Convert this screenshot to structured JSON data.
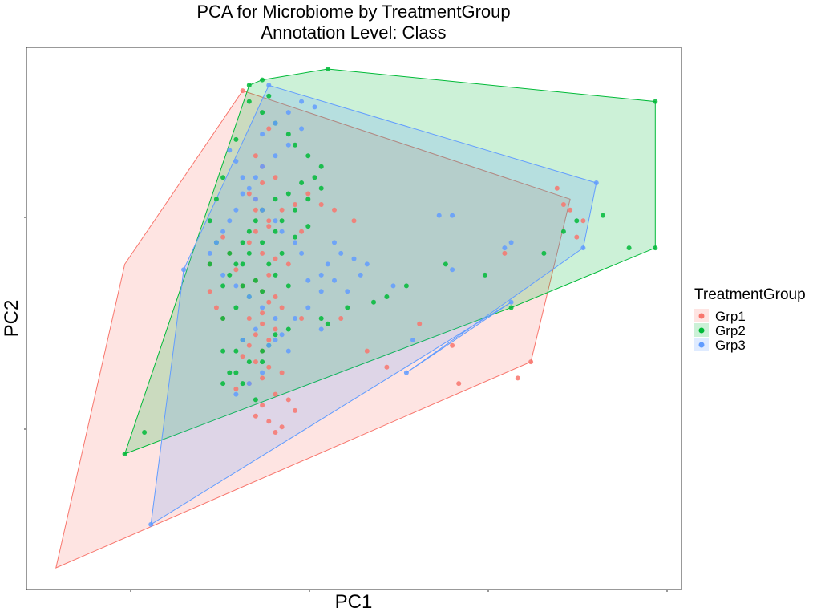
{
  "chart_data": {
    "type": "scatter",
    "title": "PCA for Microbiome by TreatmentGroup",
    "subtitle": "Annotation Level: Class",
    "xlabel": "PC1",
    "ylabel": "PC2",
    "xlim": [
      0,
      100
    ],
    "ylim": [
      0,
      100
    ],
    "grid": false,
    "legend": {
      "title": "TreatmentGroup",
      "position": "right"
    },
    "groups": [
      {
        "name": "Grp1",
        "color": "#F8766D",
        "hull": [
          [
            4.5,
            4
          ],
          [
            15,
            60
          ],
          [
            33,
            92
          ],
          [
            83,
            72
          ],
          [
            77,
            42
          ]
        ],
        "points": [
          [
            33,
            92
          ],
          [
            37,
            85
          ],
          [
            35,
            80
          ],
          [
            36,
            78
          ],
          [
            38,
            76
          ],
          [
            36,
            75
          ],
          [
            34,
            73
          ],
          [
            35,
            72
          ],
          [
            36,
            70
          ],
          [
            37,
            68
          ],
          [
            35,
            66
          ],
          [
            34,
            64
          ],
          [
            36,
            62
          ],
          [
            38,
            61
          ],
          [
            40,
            60
          ],
          [
            37,
            58
          ],
          [
            35,
            57
          ],
          [
            33,
            56
          ],
          [
            36,
            55
          ],
          [
            38,
            54
          ],
          [
            37,
            53
          ],
          [
            39,
            52
          ],
          [
            36,
            51
          ],
          [
            34,
            50
          ],
          [
            36,
            49
          ],
          [
            38,
            48
          ],
          [
            35,
            47
          ],
          [
            37,
            46
          ],
          [
            34,
            45
          ],
          [
            36,
            44
          ],
          [
            33,
            43
          ],
          [
            35,
            42
          ],
          [
            37,
            41
          ],
          [
            39,
            40
          ],
          [
            36,
            39
          ],
          [
            34,
            38
          ],
          [
            32,
            37
          ],
          [
            38,
            36
          ],
          [
            40,
            35
          ],
          [
            36,
            34
          ],
          [
            41,
            33
          ],
          [
            35,
            32
          ],
          [
            37,
            31
          ],
          [
            39,
            30
          ],
          [
            38,
            29
          ],
          [
            30,
            65
          ],
          [
            31,
            62
          ],
          [
            32,
            59
          ],
          [
            28,
            60
          ],
          [
            28,
            55
          ],
          [
            29,
            52
          ],
          [
            30,
            50
          ],
          [
            35,
            70
          ],
          [
            37,
            67
          ],
          [
            42,
            66
          ],
          [
            39,
            70
          ],
          [
            41,
            71
          ],
          [
            43,
            73
          ],
          [
            45,
            71
          ],
          [
            47,
            70
          ],
          [
            50,
            68
          ],
          [
            42,
            50
          ],
          [
            48,
            50
          ],
          [
            52,
            44
          ],
          [
            55,
            41
          ],
          [
            60,
            49
          ],
          [
            65,
            45
          ],
          [
            66,
            38
          ],
          [
            81,
            74
          ],
          [
            82,
            71
          ],
          [
            83,
            70
          ],
          [
            85,
            68
          ],
          [
            84,
            65
          ],
          [
            73,
            62
          ],
          [
            75,
            39
          ],
          [
            77,
            42
          ]
        ]
      },
      {
        "name": "Grp2",
        "color": "#00BA38",
        "hull": [
          [
            15,
            25
          ],
          [
            34,
            93
          ],
          [
            36,
            94
          ],
          [
            46,
            96
          ],
          [
            96,
            90
          ],
          [
            96,
            63
          ],
          [
            74,
            52
          ]
        ],
        "points": [
          [
            15,
            25
          ],
          [
            18,
            29
          ],
          [
            34,
            93
          ],
          [
            36,
            94
          ],
          [
            46,
            96
          ],
          [
            96,
            90
          ],
          [
            96,
            63
          ],
          [
            74,
            52
          ],
          [
            92,
            63
          ],
          [
            88,
            69
          ],
          [
            84,
            68
          ],
          [
            82,
            66
          ],
          [
            79,
            62
          ],
          [
            70,
            58
          ],
          [
            64,
            60
          ],
          [
            58,
            56
          ],
          [
            55,
            54
          ],
          [
            53,
            53
          ],
          [
            49,
            52
          ],
          [
            46,
            49
          ],
          [
            45,
            50
          ],
          [
            40,
            48
          ],
          [
            38,
            47
          ],
          [
            37,
            45
          ],
          [
            36,
            44
          ],
          [
            36,
            55
          ],
          [
            35,
            57
          ],
          [
            33,
            56
          ],
          [
            32,
            60
          ],
          [
            31,
            62
          ],
          [
            33,
            64
          ],
          [
            34,
            66
          ],
          [
            35,
            68
          ],
          [
            36,
            70
          ],
          [
            38,
            72
          ],
          [
            40,
            73
          ],
          [
            42,
            75
          ],
          [
            44,
            76
          ],
          [
            45,
            78
          ],
          [
            43,
            80
          ],
          [
            41,
            82
          ],
          [
            40,
            84
          ],
          [
            38,
            86
          ],
          [
            36,
            88
          ],
          [
            34,
            90
          ],
          [
            37,
            91
          ],
          [
            32,
            83
          ],
          [
            30,
            76
          ],
          [
            29,
            72
          ],
          [
            28,
            68
          ],
          [
            29,
            64
          ],
          [
            28,
            60
          ],
          [
            30,
            56
          ],
          [
            31,
            58
          ],
          [
            33,
            60
          ],
          [
            34,
            62
          ],
          [
            36,
            64
          ],
          [
            38,
            66
          ],
          [
            39,
            68
          ],
          [
            41,
            70
          ],
          [
            43,
            72
          ],
          [
            45,
            74
          ],
          [
            30,
            50
          ],
          [
            32,
            52
          ],
          [
            34,
            54
          ],
          [
            33,
            46
          ],
          [
            32,
            44
          ],
          [
            30,
            44
          ],
          [
            31,
            40
          ],
          [
            33,
            38
          ],
          [
            35,
            35
          ],
          [
            36,
            42
          ],
          [
            37,
            60
          ],
          [
            39,
            62
          ],
          [
            41,
            65
          ],
          [
            43,
            67
          ],
          [
            40,
            56
          ],
          [
            38,
            58
          ],
          [
            34,
            42
          ],
          [
            32,
            40
          ],
          [
            30,
            38
          ]
        ]
      },
      {
        "name": "Grp3",
        "color": "#619CFF",
        "hull": [
          [
            19,
            12
          ],
          [
            24,
            59
          ],
          [
            37,
            93
          ],
          [
            87,
            75
          ],
          [
            85,
            63
          ],
          [
            58,
            40
          ],
          [
            74,
            53
          ]
        ],
        "points": [
          [
            19,
            12
          ],
          [
            24,
            59
          ],
          [
            37,
            93
          ],
          [
            87,
            75
          ],
          [
            85,
            63
          ],
          [
            58,
            40
          ],
          [
            74,
            53
          ],
          [
            59,
            46
          ],
          [
            63,
            69
          ],
          [
            65,
            69
          ],
          [
            73,
            63
          ],
          [
            74,
            64
          ],
          [
            65,
            59
          ],
          [
            56,
            56
          ],
          [
            52,
            60
          ],
          [
            51,
            58
          ],
          [
            50,
            61
          ],
          [
            48,
            62
          ],
          [
            47,
            64
          ],
          [
            45,
            58
          ],
          [
            43,
            57
          ],
          [
            42,
            62
          ],
          [
            41,
            64
          ],
          [
            39,
            66
          ],
          [
            38,
            68
          ],
          [
            36,
            70
          ],
          [
            35,
            72
          ],
          [
            34,
            74
          ],
          [
            33,
            76
          ],
          [
            32,
            79
          ],
          [
            31,
            81
          ],
          [
            36,
            84
          ],
          [
            38,
            86
          ],
          [
            40,
            88
          ],
          [
            42,
            90
          ],
          [
            44,
            89
          ],
          [
            42,
            85
          ],
          [
            40,
            82
          ],
          [
            38,
            80
          ],
          [
            36,
            78
          ],
          [
            35,
            76
          ],
          [
            33,
            73
          ],
          [
            32,
            70
          ],
          [
            31,
            68
          ],
          [
            30,
            66
          ],
          [
            29,
            64
          ],
          [
            28,
            62
          ],
          [
            30,
            58
          ],
          [
            32,
            56
          ],
          [
            34,
            54
          ],
          [
            36,
            52
          ],
          [
            38,
            50
          ],
          [
            35,
            48
          ],
          [
            33,
            46
          ],
          [
            37,
            45
          ],
          [
            39,
            47
          ],
          [
            41,
            50
          ],
          [
            43,
            52
          ],
          [
            45,
            55
          ],
          [
            46,
            60
          ],
          [
            47,
            57
          ],
          [
            49,
            55
          ],
          [
            45,
            48
          ],
          [
            40,
            44
          ],
          [
            38,
            46
          ],
          [
            36,
            40
          ],
          [
            34,
            38
          ],
          [
            32,
            36
          ]
        ]
      }
    ]
  }
}
